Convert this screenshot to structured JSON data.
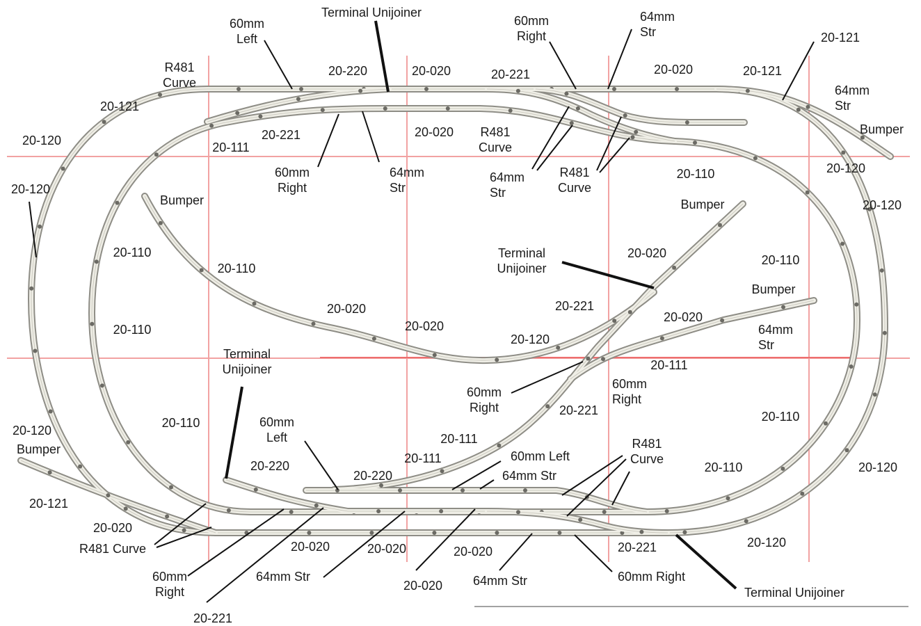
{
  "labels": {
    "l01": [
      "60mm",
      "Left"
    ],
    "l02": [
      "Terminal Unijoiner"
    ],
    "l03": [
      "60mm",
      "Right"
    ],
    "l04": [
      "64mm",
      "Str"
    ],
    "l05": [
      "20-121"
    ],
    "l06": [
      "R481",
      "Curve"
    ],
    "l07": [
      "20-220"
    ],
    "l08": [
      "20-020"
    ],
    "l09": [
      "20-221"
    ],
    "l10": [
      "20-020"
    ],
    "l11": [
      "20-121"
    ],
    "l12": [
      "64mm",
      "Str"
    ],
    "l13": [
      "Bumper"
    ],
    "l14": [
      "20-121"
    ],
    "l15": [
      "20-221"
    ],
    "l16": [
      "20-020"
    ],
    "l17": [
      "R481",
      "Curve"
    ],
    "l18": [
      "20-111"
    ],
    "l19": [
      "60mm",
      "Right"
    ],
    "l20": [
      "64mm",
      "Str"
    ],
    "l21": [
      "64mm",
      "Str"
    ],
    "l22": [
      "R481",
      "Curve"
    ],
    "l23": [
      "20-120"
    ],
    "l24": [
      "20-110"
    ],
    "l25": [
      "20-120"
    ],
    "l26": [
      "20-120"
    ],
    "l27": [
      "20-120"
    ],
    "l28": [
      "Bumper"
    ],
    "l29": [
      "Bumper"
    ],
    "l30": [
      "20-020"
    ],
    "l31": [
      "Terminal",
      "Unijoiner"
    ],
    "l32": [
      "20-110"
    ],
    "l33": [
      "20-110"
    ],
    "l34": [
      "20-110"
    ],
    "l35": [
      "Bumper"
    ],
    "l36": [
      "20-221"
    ],
    "l37": [
      "20-020"
    ],
    "l38": [
      "20-020"
    ],
    "l39": [
      "20-020"
    ],
    "l40": [
      "64mm",
      "Str"
    ],
    "l41": [
      "20-120"
    ],
    "l42": [
      "20-110"
    ],
    "l43": [
      "Terminal",
      "Unijoiner"
    ],
    "l44": [
      "20-111"
    ],
    "l45": [
      "60mm",
      "Right"
    ],
    "l46": [
      "60mm",
      "Right"
    ],
    "l47": [
      "20-221"
    ],
    "l48": [
      "20-110"
    ],
    "l49": [
      "20-110"
    ],
    "l50": [
      "60mm",
      "Left"
    ],
    "l51": [
      "20-120"
    ],
    "l52": [
      "20-111"
    ],
    "l53": [
      "20-111"
    ],
    "l54": [
      "Bumper"
    ],
    "l55": [
      "R481",
      "Curve"
    ],
    "l56": [
      "20-220"
    ],
    "l57": [
      "20-220"
    ],
    "l58": [
      "60mm  Left"
    ],
    "l59": [
      "64mm  Str"
    ],
    "l60": [
      "20-110"
    ],
    "l61": [
      "20-120"
    ],
    "l62": [
      "20-121"
    ],
    "l63": [
      "20-020"
    ],
    "l64": [
      "R481 Curve"
    ],
    "l65": [
      "20-020"
    ],
    "l66": [
      "20-020"
    ],
    "l67": [
      "20-020"
    ],
    "l68": [
      "20-221"
    ],
    "l69": [
      "20-120"
    ],
    "l70": [
      "60mm",
      "Right"
    ],
    "l71": [
      "64mm  Str"
    ],
    "l72": [
      "60mm   Right"
    ],
    "l73": [
      "Terminal Unijoiner"
    ],
    "l74": [
      "20-020"
    ],
    "l75": [
      "64mm  Str"
    ],
    "l76": [
      "20-221"
    ]
  },
  "colors": {
    "grid_line": "#f2a2a2",
    "rail": "#efeee6",
    "rail_edge": "#8e8d86",
    "label_text": "#1a1a1a"
  }
}
